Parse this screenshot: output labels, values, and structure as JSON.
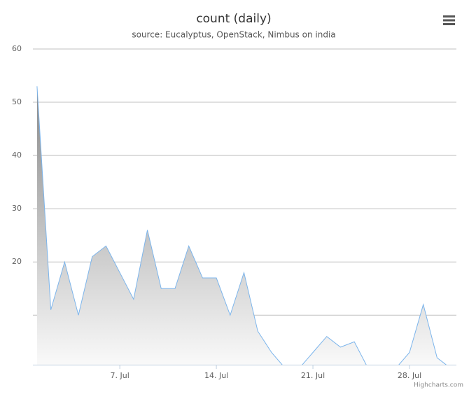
{
  "chart_data": {
    "type": "area",
    "title": "count (daily)",
    "subtitle": "source: Eucalyptus, OpenStack, Nimbus on india",
    "credits": "Highcharts.com",
    "x": [
      1,
      2,
      3,
      4,
      5,
      6,
      7,
      8,
      9,
      10,
      11,
      12,
      13,
      14,
      15,
      16,
      17,
      18,
      19,
      20,
      21,
      22,
      23,
      24,
      25,
      26,
      27,
      28,
      29,
      30,
      31
    ],
    "series": [
      {
        "name": "count",
        "color": "#7cb5ec",
        "values": [
          53,
          11,
          20,
          10,
          21,
          23,
          18,
          13,
          26,
          15,
          15,
          23,
          17,
          17,
          10,
          18,
          7,
          3,
          0,
          0,
          3,
          6,
          4,
          5,
          0,
          0,
          0,
          3,
          12,
          2,
          0
        ]
      }
    ],
    "xlim": [
      0.7,
      31.4
    ],
    "xticks": [
      {
        "value": 7,
        "label": "7. Jul"
      },
      {
        "value": 14,
        "label": "14. Jul"
      },
      {
        "value": 21,
        "label": "21. Jul"
      },
      {
        "value": 28,
        "label": "28. Jul"
      }
    ],
    "ylim": [
      0.7,
      60
    ],
    "yticks": [
      20,
      30,
      40,
      50,
      60
    ],
    "extra_gridlines": [
      10
    ],
    "grid": true
  }
}
